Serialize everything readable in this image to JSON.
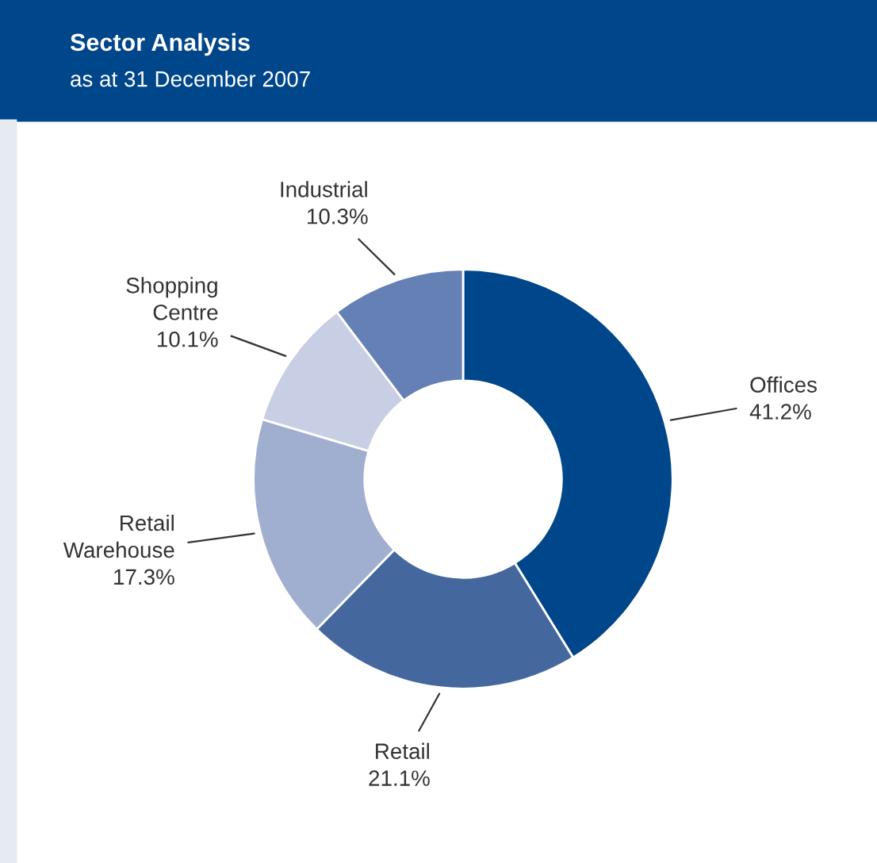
{
  "chart_data": {
    "type": "donut",
    "title": "Sector Analysis",
    "subtitle": "as at 31 December 2007",
    "categories": [
      "Offices",
      "Retail",
      "Retail Warehouse",
      "Shopping Centre",
      "Industrial"
    ],
    "values": [
      41.2,
      21.1,
      17.3,
      10.1,
      10.3
    ],
    "colors": [
      "#00468a",
      "#44679e",
      "#a0afd0",
      "#c8cfe4",
      "#6580b4"
    ],
    "value_labels": [
      "41.2%",
      "21.1%",
      "17.3%",
      "10.1%",
      "10.3%"
    ],
    "legend": false
  }
}
